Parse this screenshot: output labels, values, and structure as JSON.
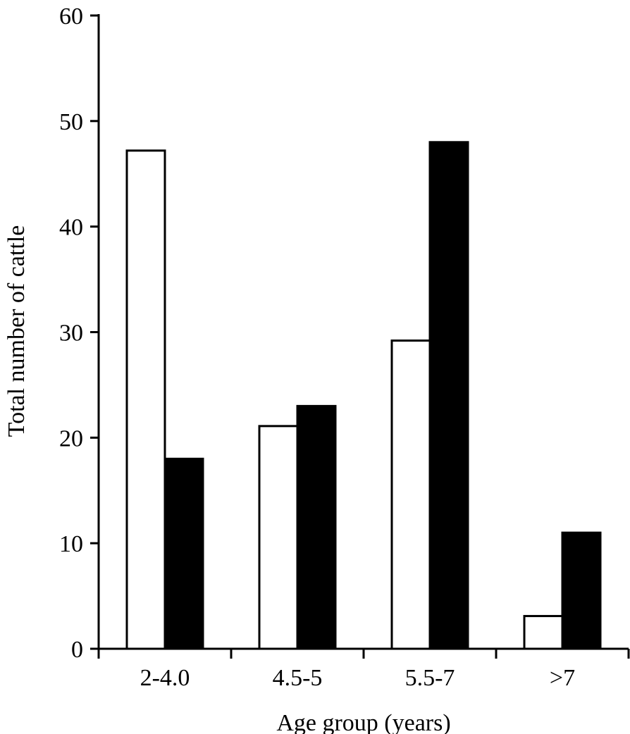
{
  "chart_data": {
    "type": "bar",
    "categories": [
      "2-4.0",
      "4.5-5",
      "5.5-7",
      ">7"
    ],
    "series": [
      {
        "values": [
          47.2,
          21.1,
          29.2,
          3.1
        ],
        "color": "#ffffff"
      },
      {
        "values": [
          18,
          23,
          48,
          11
        ],
        "color": "#000000"
      }
    ],
    "xlabel": "Age group (years)",
    "ylabel": "Total number of cattle",
    "ylim": [
      0,
      60
    ],
    "yticks": [
      "0",
      "10",
      "20",
      "30",
      "40",
      "50",
      "60"
    ],
    "grid": false,
    "legend": "none"
  }
}
